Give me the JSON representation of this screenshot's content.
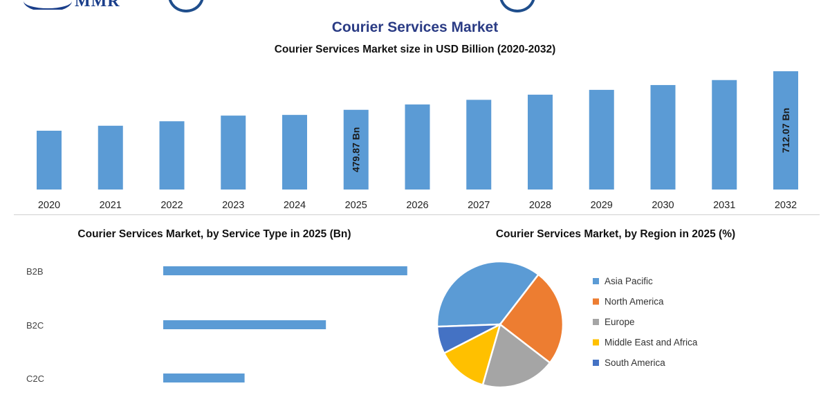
{
  "header": {
    "logo_text": "MMR",
    "title": "Courier Services Market",
    "subtitle": "Courier Services Market size in USD Billion (2020-2032)"
  },
  "colors": {
    "title": "#2a3b84",
    "bar": "#5b9bd5",
    "asia_pacific": "#5b9bd5",
    "north_america": "#ed7d31",
    "europe": "#a5a5a5",
    "middle_east_africa": "#ffc000",
    "south_america": "#4472c4"
  },
  "chart_data": [
    {
      "type": "bar",
      "title": "Courier Services Market size in USD Billion (2020-2032)",
      "categories": [
        "2020",
        "2021",
        "2022",
        "2023",
        "2024",
        "2025",
        "2026",
        "2027",
        "2028",
        "2029",
        "2030",
        "2031",
        "2032"
      ],
      "values": [
        354,
        384,
        411,
        445,
        449.2,
        479.87,
        512,
        540,
        571,
        600,
        629,
        659,
        712.07
      ],
      "data_labels": [
        {
          "index": 5,
          "text": "479.87 Bn"
        },
        {
          "index": 12,
          "text": "712.07 Bn"
        }
      ],
      "xlabel": "",
      "ylabel": "",
      "ylim": [
        0,
        712.07
      ],
      "grid": false,
      "legend": "none"
    },
    {
      "type": "bar",
      "orientation": "horizontal",
      "title": "Courier Services Market, by Service Type in 2025 (Bn)",
      "categories": [
        "B2B",
        "B2C",
        "C2C"
      ],
      "values": [
        270,
        180,
        90
      ],
      "xlim": [
        0,
        300
      ],
      "grid": false,
      "legend": "none"
    },
    {
      "type": "pie",
      "title": "Courier Services Market, by Region in 2025 (%)",
      "labels": [
        "Asia Pacific",
        "North America",
        "Europe",
        "Middle East and Africa",
        "South America"
      ],
      "values": [
        36,
        25,
        19,
        13,
        7
      ],
      "legend": "right"
    }
  ]
}
